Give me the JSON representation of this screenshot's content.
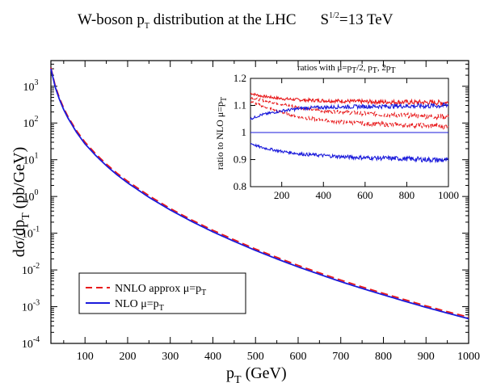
{
  "chart_data": [
    {
      "type": "line",
      "title": "W-boson p_T distribution at the LHC    S^1/2=13 TeV",
      "title_parts": {
        "main": "W-boson p",
        "main_sub": "T",
        "main_rest": " distribution at the LHC",
        "energy": "S",
        "energy_sup": "1/2",
        "energy_rest": "=13 TeV"
      },
      "xlabel": "p_T (GeV)",
      "xlabel_parts": {
        "p": "p",
        "sub": "T",
        "rest": " (GeV)"
      },
      "ylabel": "dσ/dp_T (pb/GeV)",
      "ylabel_parts": {
        "main": "dσ/dp",
        "sub": "T",
        "rest": " (pb/GeV)"
      },
      "xlim": [
        20,
        1000
      ],
      "ylim": [
        0.0001,
        5000
      ],
      "y_scale": "log",
      "x_ticks": [
        100,
        200,
        300,
        400,
        500,
        600,
        700,
        800,
        900,
        1000
      ],
      "x_tick_labels": [
        "100",
        "200",
        "300",
        "400",
        "500",
        "600",
        "700",
        "800",
        "900",
        "1000"
      ],
      "y_ticks": [
        {
          "value": 1000,
          "base": "10",
          "exp": "3"
        },
        {
          "value": 100,
          "base": "10",
          "exp": "2"
        },
        {
          "value": 10,
          "base": "10",
          "exp": "1"
        },
        {
          "value": 1,
          "base": "10",
          "exp": "0"
        },
        {
          "value": 0.1,
          "base": "10",
          "exp": "-1"
        },
        {
          "value": 0.01,
          "base": "10",
          "exp": "-2"
        },
        {
          "value": 0.001,
          "base": "10",
          "exp": "-3"
        },
        {
          "value": 0.0001,
          "base": "10",
          "exp": "-4"
        }
      ],
      "legend": {
        "placement": "bottom-left",
        "entries": [
          {
            "label": "NNLO approx   μ=p",
            "sub": "T",
            "color": "#e8191b",
            "style": "dashed"
          },
          {
            "label": "NLO  μ=p",
            "sub": "T",
            "color": "#1a1adb",
            "style": "solid"
          }
        ]
      },
      "series": [
        {
          "name": "NNLO approx μ=p_T",
          "color": "#e8191b",
          "style": "dashed",
          "x": [
            20,
            30,
            40,
            50,
            60,
            80,
            100,
            125,
            150,
            175,
            200,
            250,
            300,
            350,
            400,
            450,
            500,
            550,
            600,
            650,
            700,
            750,
            800,
            850,
            900,
            950,
            1000
          ],
          "values": [
            3200,
            1050,
            480,
            255,
            150,
            62,
            30,
            14.5,
            7.6,
            4.3,
            2.6,
            1.05,
            0.47,
            0.23,
            0.12,
            0.066,
            0.037,
            0.022,
            0.0133,
            0.0083,
            0.0053,
            0.00345,
            0.0023,
            0.00155,
            0.00105,
            0.00073,
            0.00052
          ]
        },
        {
          "name": "NLO μ=p_T",
          "color": "#1a1adb",
          "style": "solid",
          "x": [
            20,
            30,
            40,
            50,
            60,
            80,
            100,
            125,
            150,
            175,
            200,
            250,
            300,
            350,
            400,
            450,
            500,
            550,
            600,
            650,
            700,
            750,
            800,
            850,
            900,
            950,
            1000
          ],
          "values": [
            3000,
            960,
            440,
            232,
            137,
            56,
            27,
            13.1,
            6.9,
            3.9,
            2.35,
            0.95,
            0.43,
            0.21,
            0.109,
            0.06,
            0.034,
            0.02,
            0.0121,
            0.0076,
            0.0048,
            0.00314,
            0.0021,
            0.00141,
            0.00096,
            0.00067,
            0.00047
          ]
        }
      ]
    },
    {
      "type": "line",
      "title": "ratios with μ=p_T/2, p_T, 2p_T",
      "title_parts": {
        "a": "ratios with μ=p",
        "s1": "T",
        "b": "/2, p",
        "s2": "T",
        "c": ", 2p",
        "s3": "T"
      },
      "ylabel": "ratio to NLO μ=p_T",
      "ylabel_parts": {
        "main": "ratio to NLO μ=p",
        "sub": "T"
      },
      "xlim": [
        50,
        1000
      ],
      "ylim": [
        0.8,
        1.2
      ],
      "x_ticks": [
        200,
        400,
        600,
        800,
        1000
      ],
      "x_tick_labels": [
        "200",
        "400",
        "600",
        "800",
        "1000"
      ],
      "y_ticks": [
        0.8,
        0.9,
        1,
        1.1,
        1.2
      ],
      "y_tick_labels": [
        "0.8",
        "0.9",
        "1",
        "1.1",
        "1.2"
      ],
      "series": [
        {
          "color": "#e8191b",
          "style": "solid",
          "x": [
            50,
            100,
            200,
            300,
            400,
            500,
            600,
            700,
            800,
            900,
            1000
          ],
          "values": [
            1.145,
            1.135,
            1.125,
            1.12,
            1.118,
            1.116,
            1.114,
            1.113,
            1.112,
            1.111,
            1.11
          ]
        },
        {
          "color": "#e8191b",
          "style": "dashed",
          "x": [
            50,
            100,
            200,
            300,
            400,
            500,
            600,
            700,
            800,
            900,
            1000
          ],
          "values": [
            1.13,
            1.12,
            1.105,
            1.09,
            1.08,
            1.075,
            1.07,
            1.066,
            1.063,
            1.06,
            1.058
          ]
        },
        {
          "color": "#e8191b",
          "style": "dashed",
          "x": [
            50,
            100,
            200,
            300,
            400,
            500,
            600,
            700,
            800,
            900,
            1000
          ],
          "values": [
            1.115,
            1.1,
            1.075,
            1.055,
            1.045,
            1.038,
            1.033,
            1.03,
            1.027,
            1.025,
            1.023
          ]
        },
        {
          "color": "#1a1adb",
          "style": "solid",
          "x": [
            50,
            100,
            200,
            300,
            400,
            500,
            600,
            700,
            800,
            900,
            1000
          ],
          "values": [
            1.05,
            1.065,
            1.08,
            1.09,
            1.093,
            1.095,
            1.096,
            1.097,
            1.098,
            1.098,
            1.1
          ]
        },
        {
          "color": "#1a1adb",
          "style": "solid",
          "x": [
            50,
            1000
          ],
          "values": [
            1,
            1
          ]
        },
        {
          "color": "#1a1adb",
          "style": "solid",
          "x": [
            50,
            100,
            200,
            300,
            400,
            500,
            600,
            700,
            800,
            900,
            1000
          ],
          "values": [
            0.96,
            0.945,
            0.93,
            0.92,
            0.915,
            0.91,
            0.907,
            0.905,
            0.903,
            0.9,
            0.897
          ]
        }
      ]
    }
  ]
}
